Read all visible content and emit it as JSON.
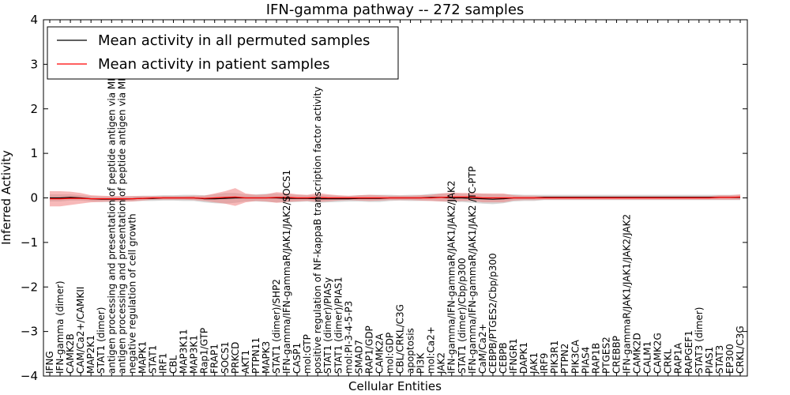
{
  "chart_data": {
    "type": "line",
    "title": "IFN-gamma pathway -- 272 samples",
    "xlabel": "Cellular Entities",
    "ylabel": "Inferred Activity",
    "ylim": [
      -4,
      4
    ],
    "yticks": [
      "−4",
      "−3",
      "−2",
      "−1",
      "0",
      "1",
      "2",
      "3",
      "4"
    ],
    "grid": false,
    "legend_position": "top-left",
    "categories": [
      "IFNG",
      "IFN-gamma (dimer)",
      "CAMK2B",
      "CAM/Ca2+/CAMKII",
      "MAP2K1",
      "STAT1 (dimer)",
      "antigen processing and presentation of peptide antigen via MHC class I",
      "antigen processing and presentation of peptide antigen via MHC class II",
      "negative regulation of cell growth",
      "MAPK1",
      "STAT1",
      "IRF1",
      "CBL",
      "MAP3K11",
      "MAP3K1",
      "Rap1/GTP",
      "FRAP1",
      "SOCS1",
      "PRKCD",
      "AKT1",
      "PTPN11",
      "MAPK3",
      "STAT1 (dimer)/SHP2",
      "IFN-gamma/IFN-gammaR/JAK1/JAK2/SOCS1",
      "CASP1",
      "mol:GTP",
      "positive regulation of NF-kappaB transcription factor activity",
      "STAT1 (dimer)/PIASy",
      "STAT1 (dimer)/PIAS1",
      "mol:PI-3-4-5-P3",
      "SMAD7",
      "RAP1/GDP",
      "CAMK2A",
      "mol:GDP",
      "CBL/CRKL/C3G",
      "apoptosis",
      "PI3K",
      "mol:Ca2+",
      "JAK2",
      "IFN-gamma/IFN-gammaR/JAK1/JAK2/JAK2",
      "STAT1 (dimer)/Cbp/p300",
      "IFN-gamma/IFN-gammaR/JAK1/JAK2  /TC-PTP",
      "CaM/Ca2+",
      "CEBPB/PTGES2/Cbp/p300",
      "CEBPB",
      "IFNGR1",
      "DAPK1",
      "JAK1",
      "IRF9",
      "PIK3R1",
      "PTPN2",
      "PIK3CA",
      "PIAS4",
      "RAP1B",
      "PTGES2",
      "CREBBP",
      "IFN-gammaR/JAK1/JAK1/JAK2/JAK2",
      "CAMK2D",
      "CALM1",
      "CAMK2G",
      "CRKL",
      "RAP1A",
      "RAPGEF1",
      "STAT3 (dimer)",
      "PIAS1",
      "STAT3",
      "EP300",
      "CRKL/C3G"
    ],
    "series": [
      {
        "name": "Mean activity in all permuted samples",
        "color": "#000000",
        "band_color": "#bbbbbb",
        "values": [
          0,
          0,
          0.01,
          0,
          -0.02,
          -0.03,
          -0.03,
          -0.03,
          -0.02,
          -0.01,
          -0.01,
          0,
          0,
          0,
          0,
          -0.02,
          -0.02,
          -0.01,
          0,
          0,
          0,
          0,
          0,
          -0.01,
          -0.01,
          -0.01,
          -0.02,
          -0.02,
          -0.02,
          -0.02,
          -0.01,
          -0.01,
          -0.01,
          0,
          0,
          0,
          0,
          0.01,
          0.01,
          0,
          0,
          -0.01,
          -0.02,
          -0.03,
          -0.02,
          0,
          0,
          0,
          0.01,
          0.01,
          0.01,
          0.01,
          0.01,
          0.01,
          0.01,
          0.01,
          0.01,
          0.01,
          0.01,
          0.01,
          0.01,
          0.01,
          0.01,
          0.01,
          0.01,
          0.01,
          0.01,
          0.01
        ],
        "band": [
          0.08,
          0.08,
          0.07,
          0.06,
          0.06,
          0.06,
          0.06,
          0.06,
          0.06,
          0.06,
          0.06,
          0.06,
          0.06,
          0.07,
          0.07,
          0.08,
          0.1,
          0.12,
          0.11,
          0.08,
          0.08,
          0.09,
          0.1,
          0.09,
          0.08,
          0.07,
          0.09,
          0.08,
          0.07,
          0.06,
          0.07,
          0.08,
          0.08,
          0.07,
          0.06,
          0.07,
          0.07,
          0.08,
          0.09,
          0.1,
          0.09,
          0.1,
          0.11,
          0.11,
          0.1,
          0.08,
          0.07,
          0.07,
          0.06,
          0.06,
          0.06,
          0.06,
          0.06,
          0.06,
          0.06,
          0.06,
          0.06,
          0.06,
          0.06,
          0.06,
          0.06,
          0.06,
          0.06,
          0.06,
          0.06,
          0.06,
          0.06,
          0.06
        ]
      },
      {
        "name": "Mean activity in patient samples",
        "color": "#ff0000",
        "band_color": "#f08080",
        "values": [
          -0.02,
          -0.02,
          -0.01,
          -0.01,
          -0.02,
          -0.02,
          -0.02,
          -0.02,
          -0.02,
          -0.01,
          0,
          0,
          0,
          0,
          0,
          -0.01,
          0,
          0.01,
          0.02,
          0,
          0,
          0,
          0.01,
          0.01,
          0,
          0,
          0.01,
          0,
          0,
          0,
          0,
          0,
          0,
          0,
          0,
          0,
          0,
          0,
          0.01,
          0.02,
          0.02,
          0.02,
          0,
          0,
          0,
          0,
          0,
          0,
          0,
          0,
          0,
          0,
          0,
          0,
          0,
          0,
          0,
          0,
          0,
          0,
          0,
          0,
          0,
          0,
          0,
          0.01,
          0.01,
          0.02
        ],
        "band": [
          0.17,
          0.17,
          0.15,
          0.12,
          0.08,
          0.07,
          0.06,
          0.06,
          0.06,
          0.05,
          0.04,
          0.04,
          0.04,
          0.04,
          0.05,
          0.06,
          0.1,
          0.14,
          0.2,
          0.1,
          0.07,
          0.08,
          0.12,
          0.1,
          0.08,
          0.07,
          0.1,
          0.08,
          0.06,
          0.05,
          0.06,
          0.07,
          0.06,
          0.05,
          0.05,
          0.05,
          0.06,
          0.07,
          0.09,
          0.1,
          0.09,
          0.09,
          0.1,
          0.1,
          0.1,
          0.06,
          0.05,
          0.05,
          0.04,
          0.04,
          0.04,
          0.04,
          0.04,
          0.04,
          0.04,
          0.04,
          0.04,
          0.04,
          0.04,
          0.04,
          0.04,
          0.04,
          0.04,
          0.04,
          0.04,
          0.05,
          0.05,
          0.06
        ]
      }
    ]
  }
}
